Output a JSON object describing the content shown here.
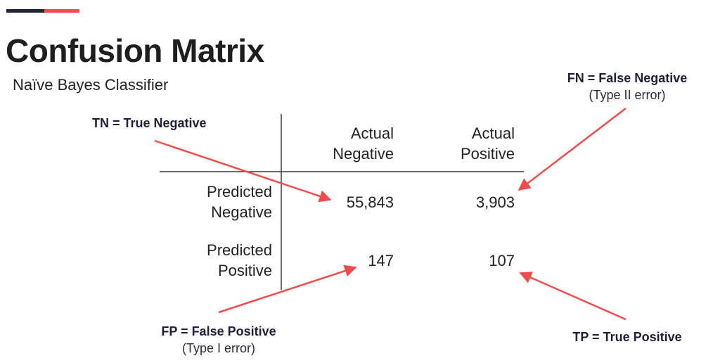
{
  "header": {
    "title": "Confusion Matrix",
    "subtitle": "Naïve Bayes Classifier"
  },
  "colors": {
    "dark": "#22243a",
    "accent": "#ef4d4d",
    "grid": "#3a3a3a"
  },
  "matrix": {
    "col_headers": [
      {
        "line1": "Actual",
        "line2": "Negative"
      },
      {
        "line1": "Actual",
        "line2": "Positive"
      }
    ],
    "row_headers": [
      {
        "line1": "Predicted",
        "line2": "Negative"
      },
      {
        "line1": "Predicted",
        "line2": "Positive"
      }
    ],
    "values": [
      [
        "55,843",
        "3,903"
      ],
      [
        "147",
        "107"
      ]
    ]
  },
  "callouts": {
    "tn": {
      "key": "TN = True Negative"
    },
    "fn": {
      "key": "FN = False Negative",
      "note": "(Type II error)"
    },
    "fp": {
      "key": "FP = False Positive",
      "note": "(Type I error)"
    },
    "tp": {
      "key": "TP = True Positive"
    }
  }
}
